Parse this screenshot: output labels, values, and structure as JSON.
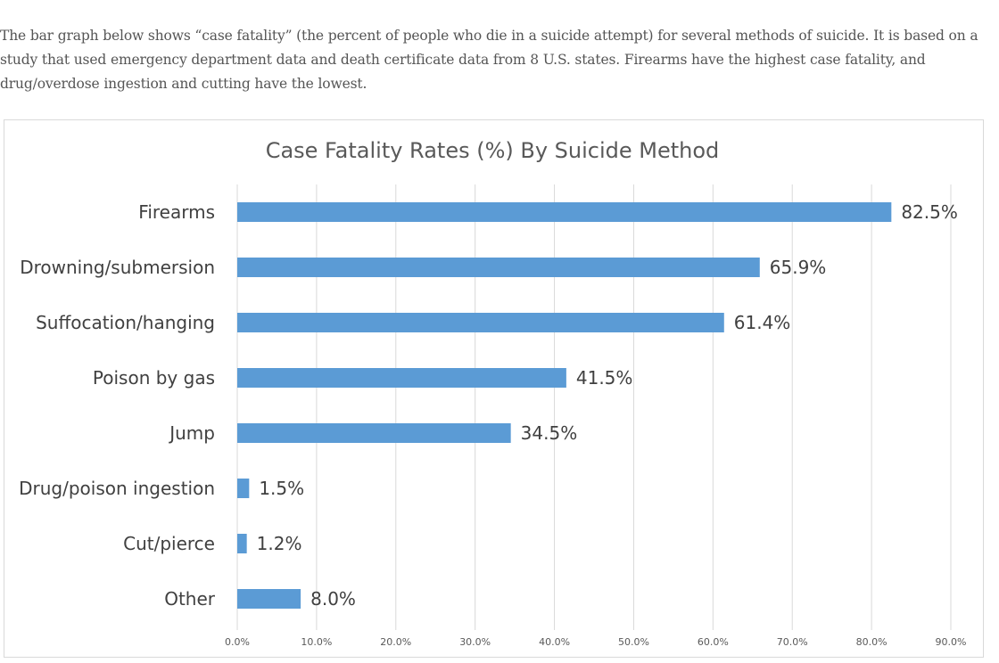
{
  "intro_text": "The bar graph below shows “case fatality” (the percent of people who die in a suicide attempt) for several methods of suicide. It is based on a study that used emergency department data and death certificate data from 8 U.S. states. Firearms have the highest case fatality, and drug/overdose ingestion and cutting have the lowest.",
  "chart_data": {
    "type": "bar",
    "orientation": "horizontal",
    "title": "Case Fatality Rates (%) By Suicide Method",
    "xlabel": "",
    "ylabel": "",
    "categories": [
      "Firearms",
      "Drowning/submersion",
      "Suffocation/hanging",
      "Poison by gas",
      "Jump",
      "Drug/poison ingestion",
      "Cut/pierce",
      "Other"
    ],
    "values": [
      82.5,
      65.9,
      61.4,
      41.5,
      34.5,
      1.5,
      1.2,
      8.0
    ],
    "value_labels": [
      "82.5%",
      "65.9%",
      "61.4%",
      "41.5%",
      "34.5%",
      "1.5%",
      "1.2%",
      "8.0%"
    ],
    "xlim": [
      0,
      90
    ],
    "xticks": [
      0,
      10,
      20,
      30,
      40,
      50,
      60,
      70,
      80,
      90
    ],
    "xtick_labels": [
      "0.0%",
      "10.0%",
      "20.0%",
      "30.0%",
      "40.0%",
      "50.0%",
      "60.0%",
      "70.0%",
      "80.0%",
      "90.0%"
    ],
    "grid": true,
    "legend": "none",
    "bar_color": "#5b9bd5"
  }
}
